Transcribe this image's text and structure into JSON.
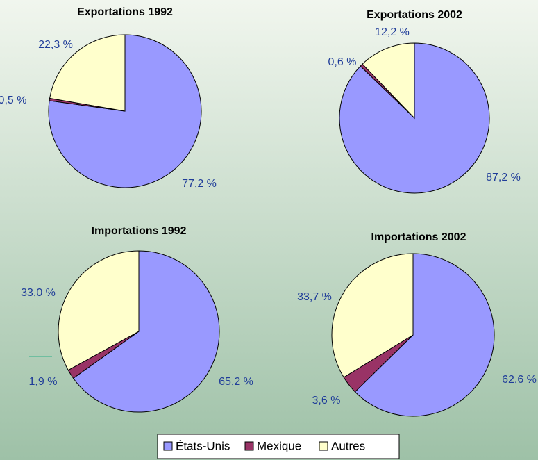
{
  "chart_data": [
    {
      "type": "pie",
      "title": "Exportations 1992",
      "categories": [
        "États-Unis",
        "Mexique",
        "Autres"
      ],
      "values": [
        77.2,
        0.5,
        22.3
      ],
      "value_labels": [
        "77,2 %",
        "0,5 %",
        "22,3 %"
      ],
      "colors": [
        "#9999ff",
        "#993366",
        "#ffffcc"
      ]
    },
    {
      "type": "pie",
      "title": "Exportations 2002",
      "categories": [
        "États-Unis",
        "Mexique",
        "Autres"
      ],
      "values": [
        87.2,
        0.6,
        12.2
      ],
      "value_labels": [
        "87,2 %",
        "0,6 %",
        "12,2 %"
      ],
      "colors": [
        "#9999ff",
        "#993366",
        "#ffffcc"
      ]
    },
    {
      "type": "pie",
      "title": "Importations 1992",
      "categories": [
        "États-Unis",
        "Mexique",
        "Autres"
      ],
      "values": [
        65.2,
        1.9,
        33.0
      ],
      "value_labels": [
        "65,2 %",
        "1,9 %",
        "33,0 %"
      ],
      "colors": [
        "#9999ff",
        "#993366",
        "#ffffcc"
      ]
    },
    {
      "type": "pie",
      "title": "Importations 2002",
      "categories": [
        "États-Unis",
        "Mexique",
        "Autres"
      ],
      "values": [
        62.6,
        3.6,
        33.7
      ],
      "value_labels": [
        "62,6 %",
        "3,6 %",
        "33,7 %"
      ],
      "colors": [
        "#9999ff",
        "#993366",
        "#ffffcc"
      ]
    }
  ]
}
